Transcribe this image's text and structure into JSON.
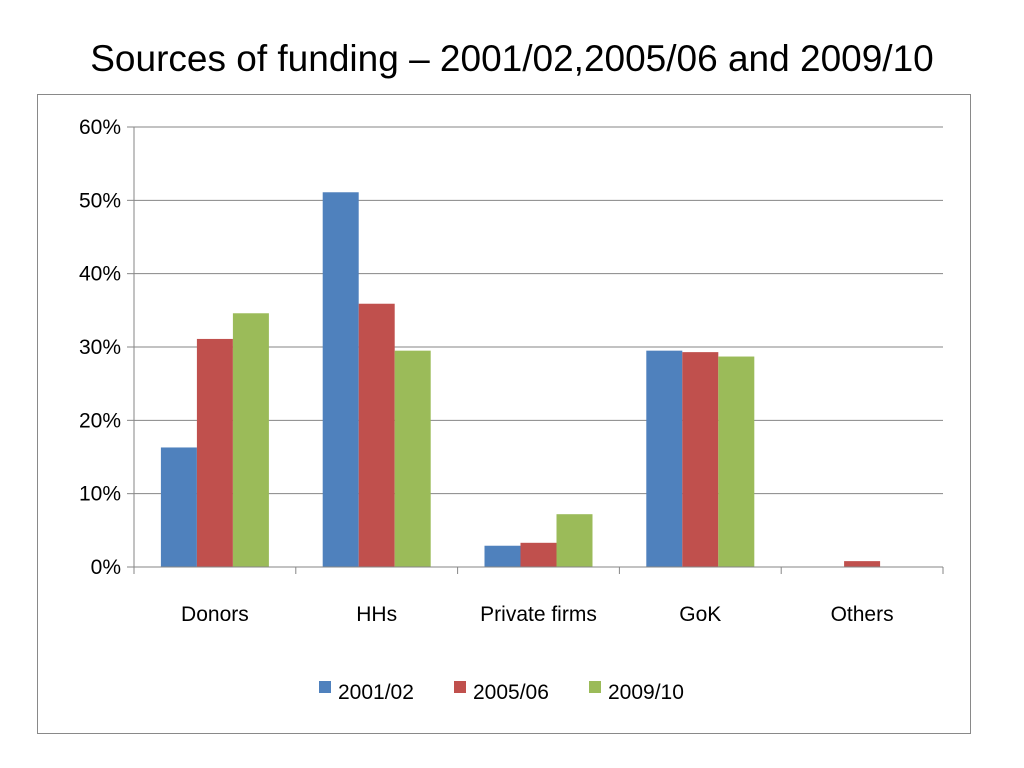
{
  "slide": {
    "title": "Sources of funding – 2001/02,2005/06 and 2009/10"
  },
  "chart_data": {
    "type": "bar",
    "title": "",
    "xlabel": "",
    "ylabel": "",
    "categories": [
      "Donors",
      "HHs",
      "Private firms",
      "GoK",
      "Others"
    ],
    "series": [
      {
        "name": "2001/02",
        "color": "#4F81BD",
        "values": [
          16.3,
          51.1,
          2.9,
          29.5,
          0
        ]
      },
      {
        "name": "2005/06",
        "color": "#C0504D",
        "values": [
          31.1,
          35.9,
          3.3,
          29.3,
          0.8
        ]
      },
      {
        "name": "2009/10",
        "color": "#9BBB59",
        "values": [
          34.6,
          29.5,
          7.2,
          28.7,
          0
        ]
      }
    ],
    "ylim": [
      0,
      60
    ],
    "y_ticks": [
      "0%",
      "10%",
      "20%",
      "30%",
      "40%",
      "50%",
      "60%"
    ],
    "grid": true,
    "legend_position": "bottom"
  }
}
